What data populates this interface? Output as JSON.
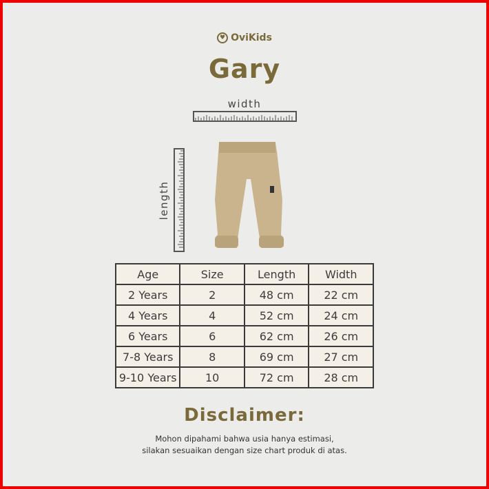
{
  "brand": "OviKids",
  "product_name": "Gary",
  "ruler_labels": {
    "width": "width",
    "length": "length"
  },
  "table": {
    "headers": [
      "Age",
      "Size",
      "Length",
      "Width"
    ],
    "rows": [
      [
        "2 Years",
        "2",
        "48 cm",
        "22 cm"
      ],
      [
        "4 Years",
        "4",
        "52 cm",
        "24 cm"
      ],
      [
        "6 Years",
        "6",
        "62 cm",
        "26 cm"
      ],
      [
        "7-8 Years",
        "8",
        "69 cm",
        "27 cm"
      ],
      [
        "9-10 Years",
        "10",
        "72 cm",
        "28 cm"
      ]
    ]
  },
  "disclaimer": {
    "title": "Disclaimer:",
    "lines": [
      "Mohon dipahami bahwa usia hanya estimasi,",
      "silakan sesuaikan dengan size chart produk di atas."
    ]
  },
  "colors": {
    "accent": "#7a6a3a",
    "table_bg": "#f4efe7",
    "border": "#e00000",
    "pants": "#c9b48e"
  }
}
